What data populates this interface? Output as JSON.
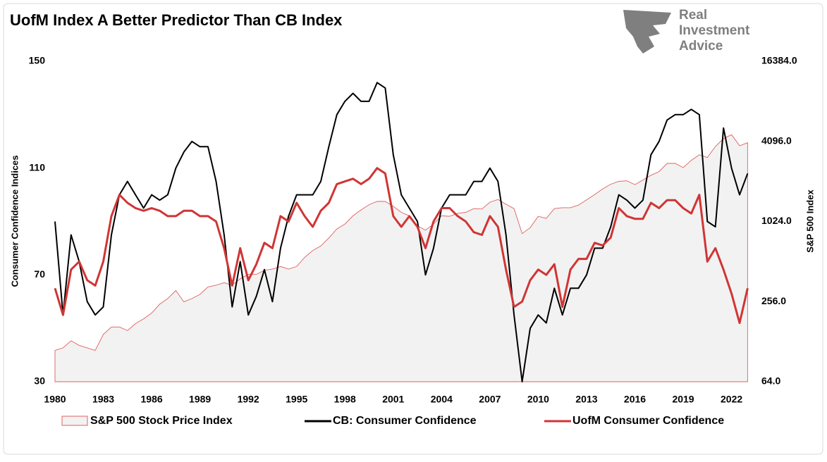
{
  "logo": {
    "lines": [
      "Real",
      "Investment",
      "Advice"
    ]
  },
  "chart_data": {
    "type": "line",
    "title": "UofM Index A Better Predictor Than CB Index",
    "y_label": "Consumer Confidence Indices",
    "y2_label": "S&P 500 Index",
    "x": [
      1980,
      1980.5,
      1981,
      1981.5,
      1982,
      1982.5,
      1983,
      1983.5,
      1984,
      1984.5,
      1985,
      1985.5,
      1986,
      1986.5,
      1987,
      1987.5,
      1988,
      1988.5,
      1989,
      1989.5,
      1990,
      1990.5,
      1991,
      1991.5,
      1992,
      1992.5,
      1993,
      1993.5,
      1994,
      1994.5,
      1995,
      1995.5,
      1996,
      1996.5,
      1997,
      1997.5,
      1998,
      1998.5,
      1999,
      1999.5,
      2000,
      2000.5,
      2001,
      2001.5,
      2002,
      2002.5,
      2003,
      2003.5,
      2004,
      2004.5,
      2005,
      2005.5,
      2006,
      2006.5,
      2007,
      2007.5,
      2008,
      2008.5,
      2009,
      2009.5,
      2010,
      2010.5,
      2011,
      2011.5,
      2012,
      2012.5,
      2013,
      2013.5,
      2014,
      2014.5,
      2015,
      2015.5,
      2016,
      2016.5,
      2017,
      2017.5,
      2018,
      2018.5,
      2019,
      2019.5,
      2020,
      2020.5,
      2021,
      2021.5,
      2022,
      2022.5,
      2023
    ],
    "series": [
      {
        "name": "S&P 500 Stock Price Index",
        "kind": "area",
        "axis": "y2",
        "color": "#e06060",
        "fill": "#f2f2f2",
        "values": [
          110,
          115,
          130,
          120,
          115,
          110,
          145,
          165,
          165,
          155,
          175,
          190,
          210,
          245,
          270,
          310,
          255,
          270,
          290,
          330,
          340,
          355,
          340,
          380,
          410,
          410,
          440,
          450,
          470,
          450,
          470,
          550,
          620,
          670,
          770,
          900,
          980,
          1130,
          1250,
          1370,
          1450,
          1450,
          1330,
          1200,
          1130,
          950,
          880,
          980,
          1130,
          1120,
          1180,
          1200,
          1280,
          1270,
          1430,
          1500,
          1380,
          1280,
          830,
          920,
          1120,
          1080,
          1280,
          1300,
          1300,
          1360,
          1490,
          1630,
          1800,
          1950,
          2050,
          2070,
          1940,
          2100,
          2280,
          2430,
          2800,
          2800,
          2600,
          2950,
          3250,
          3100,
          3750,
          4300,
          4600,
          3800,
          4000
        ]
      },
      {
        "name": "CB: Consumer Confidence",
        "kind": "line",
        "color": "#000000",
        "values": [
          90,
          55,
          85,
          75,
          60,
          55,
          58,
          85,
          100,
          105,
          100,
          95,
          100,
          98,
          100,
          110,
          116,
          120,
          118,
          118,
          105,
          85,
          58,
          75,
          55,
          62,
          72,
          60,
          80,
          92,
          100,
          100,
          100,
          105,
          118,
          130,
          135,
          138,
          135,
          135,
          142,
          140,
          115,
          100,
          95,
          90,
          70,
          80,
          95,
          100,
          100,
          100,
          105,
          105,
          110,
          105,
          85,
          55,
          30,
          50,
          55,
          52,
          65,
          55,
          65,
          65,
          70,
          80,
          80,
          88,
          100,
          98,
          95,
          98,
          115,
          120,
          128,
          130,
          130,
          132,
          130,
          90,
          88,
          125,
          110,
          100,
          108
        ]
      },
      {
        "name": "UofM Consumer Confidence",
        "kind": "line",
        "color": "#d03535",
        "values": [
          65,
          55,
          72,
          75,
          68,
          66,
          75,
          92,
          100,
          97,
          95,
          94,
          95,
          94,
          92,
          92,
          94,
          94,
          92,
          92,
          90,
          80,
          66,
          80,
          68,
          74,
          82,
          80,
          92,
          90,
          97,
          92,
          88,
          94,
          97,
          104,
          105,
          106,
          104,
          106,
          110,
          108,
          92,
          88,
          92,
          88,
          80,
          90,
          95,
          95,
          92,
          90,
          86,
          85,
          92,
          88,
          72,
          58,
          60,
          68,
          72,
          70,
          74,
          58,
          72,
          76,
          76,
          82,
          81,
          84,
          95,
          92,
          91,
          91,
          97,
          95,
          98,
          98,
          95,
          93,
          100,
          75,
          80,
          72,
          63,
          52,
          65
        ]
      }
    ],
    "xlim": [
      1980,
      2023.2
    ],
    "xticks": [
      1980,
      1983,
      1986,
      1989,
      1992,
      1995,
      1998,
      2001,
      2004,
      2007,
      2010,
      2013,
      2016,
      2019,
      2022
    ],
    "ylim": [
      30,
      150
    ],
    "yticks": [
      30,
      70,
      110,
      150
    ],
    "y2lim": [
      64,
      16384
    ],
    "y2scale": "log",
    "y2ticks": [
      {
        "value": 64,
        "label": "64.0"
      },
      {
        "value": 256,
        "label": "256.0"
      },
      {
        "value": 1024,
        "label": "1024.0"
      },
      {
        "value": 4096,
        "label": "4096.0"
      },
      {
        "value": 16384,
        "label": "16384.0"
      }
    ],
    "grid": false,
    "legend": "bottom"
  }
}
